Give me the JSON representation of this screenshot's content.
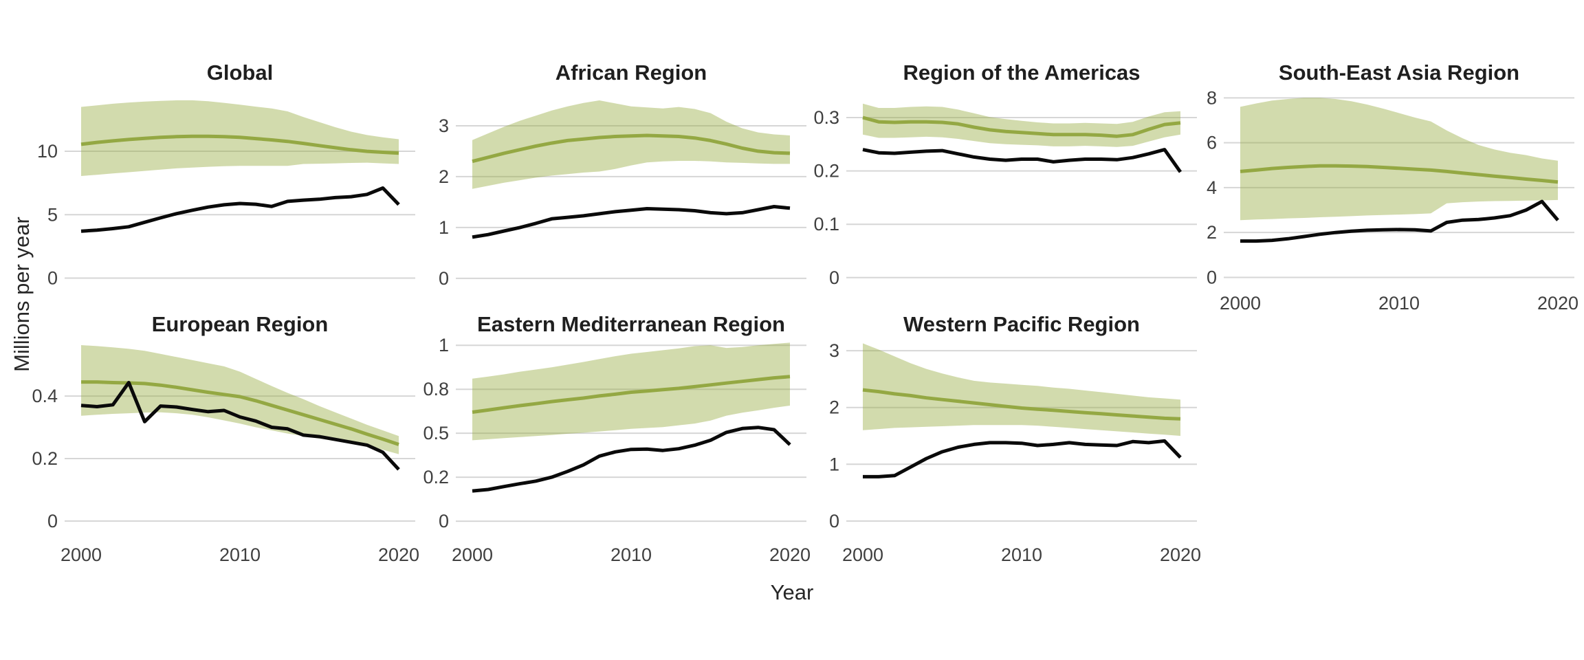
{
  "figure": {
    "xlabel": "Year",
    "ylabel": "Millions per year"
  },
  "colors": {
    "estimate_line": "#94a843",
    "confidence_band": "#94aa3c",
    "confidence_band_opacity": 0.42,
    "observed_line": "#0a0a0a",
    "gridline": "#d6d6d6",
    "tick_text": "#404040",
    "title_text": "#1f1f1f",
    "background": "#ffffff"
  },
  "chart_data": {
    "type": "line",
    "title": "",
    "xlabel": "Year",
    "ylabel": "Millions per year",
    "grid": "horizontal-only",
    "legend": "none",
    "x": [
      2000,
      2001,
      2002,
      2003,
      2004,
      2005,
      2006,
      2007,
      2008,
      2009,
      2010,
      2011,
      2012,
      2013,
      2014,
      2015,
      2016,
      2017,
      2018,
      2019,
      2020
    ],
    "xticks": [
      2000,
      2010,
      2020
    ],
    "panels": [
      {
        "title": "Global",
        "row": 0,
        "col": 0,
        "show_xaxis": false,
        "ylim": [
          -0.3,
          15.1
        ],
        "yticks": [
          {
            "v": 0,
            "label": "0"
          },
          {
            "v": 5,
            "label": "5"
          },
          {
            "v": 10,
            "label": "10"
          }
        ],
        "series": [
          {
            "name": "estimated",
            "values": [
              10.55,
              10.7,
              10.82,
              10.93,
              11.02,
              11.1,
              11.15,
              11.18,
              11.18,
              11.15,
              11.1,
              11.0,
              10.9,
              10.78,
              10.62,
              10.45,
              10.28,
              10.12,
              10.0,
              9.92,
              9.85
            ]
          },
          {
            "name": "estimated_upper",
            "values": [
              13.5,
              13.62,
              13.75,
              13.85,
              13.92,
              13.98,
              14.02,
              14.02,
              13.95,
              13.82,
              13.68,
              13.52,
              13.38,
              13.15,
              12.7,
              12.3,
              11.9,
              11.55,
              11.28,
              11.1,
              10.95
            ]
          },
          {
            "name": "estimated_lower",
            "values": [
              8.05,
              8.15,
              8.25,
              8.35,
              8.45,
              8.55,
              8.65,
              8.72,
              8.78,
              8.82,
              8.85,
              8.85,
              8.85,
              8.85,
              9.0,
              9.02,
              9.05,
              9.08,
              9.1,
              9.05,
              9.0
            ]
          },
          {
            "name": "observed",
            "values": [
              3.7,
              3.78,
              3.9,
              4.05,
              4.4,
              4.75,
              5.08,
              5.35,
              5.6,
              5.78,
              5.88,
              5.82,
              5.65,
              6.05,
              6.15,
              6.22,
              6.35,
              6.42,
              6.6,
              7.1,
              5.8
            ]
          }
        ]
      },
      {
        "title": "African Region",
        "row": 0,
        "col": 1,
        "show_xaxis": false,
        "ylim": [
          -0.07,
          3.77
        ],
        "yticks": [
          {
            "v": 0,
            "label": "0"
          },
          {
            "v": 1,
            "label": "1"
          },
          {
            "v": 2,
            "label": "2"
          },
          {
            "v": 3,
            "label": "3"
          }
        ],
        "series": [
          {
            "name": "estimated",
            "values": [
              2.3,
              2.38,
              2.46,
              2.53,
              2.6,
              2.66,
              2.71,
              2.74,
              2.77,
              2.79,
              2.8,
              2.81,
              2.8,
              2.79,
              2.76,
              2.71,
              2.64,
              2.56,
              2.5,
              2.47,
              2.46
            ]
          },
          {
            "name": "estimated_upper",
            "values": [
              2.72,
              2.85,
              2.98,
              3.1,
              3.2,
              3.3,
              3.38,
              3.45,
              3.5,
              3.44,
              3.38,
              3.36,
              3.34,
              3.37,
              3.33,
              3.25,
              3.08,
              2.95,
              2.87,
              2.83,
              2.81
            ]
          },
          {
            "name": "estimated_lower",
            "values": [
              1.76,
              1.82,
              1.88,
              1.93,
              1.98,
              2.02,
              2.05,
              2.08,
              2.1,
              2.15,
              2.22,
              2.28,
              2.3,
              2.31,
              2.31,
              2.3,
              2.28,
              2.27,
              2.26,
              2.25,
              2.25
            ]
          },
          {
            "name": "observed",
            "values": [
              0.81,
              0.86,
              0.93,
              1.0,
              1.08,
              1.17,
              1.2,
              1.23,
              1.27,
              1.31,
              1.34,
              1.37,
              1.36,
              1.35,
              1.33,
              1.29,
              1.27,
              1.29,
              1.35,
              1.41,
              1.38
            ]
          }
        ]
      },
      {
        "title": "Region of the Americas",
        "row": 0,
        "col": 2,
        "show_xaxis": false,
        "ylim": [
          -0.008,
          0.358
        ],
        "yticks": [
          {
            "v": 0,
            "label": "0"
          },
          {
            "v": 0.1,
            "label": "0.1"
          },
          {
            "v": 0.2,
            "label": "0.2"
          },
          {
            "v": 0.3,
            "label": "0.3"
          }
        ],
        "series": [
          {
            "name": "estimated",
            "values": [
              0.3,
              0.292,
              0.291,
              0.292,
              0.292,
              0.291,
              0.288,
              0.282,
              0.277,
              0.274,
              0.272,
              0.27,
              0.268,
              0.268,
              0.268,
              0.267,
              0.265,
              0.268,
              0.278,
              0.287,
              0.29
            ]
          },
          {
            "name": "estimated_upper",
            "values": [
              0.326,
              0.318,
              0.318,
              0.32,
              0.321,
              0.32,
              0.315,
              0.308,
              0.301,
              0.297,
              0.294,
              0.291,
              0.289,
              0.289,
              0.29,
              0.289,
              0.288,
              0.292,
              0.302,
              0.31,
              0.312
            ]
          },
          {
            "name": "estimated_lower",
            "values": [
              0.268,
              0.262,
              0.262,
              0.263,
              0.264,
              0.263,
              0.26,
              0.256,
              0.252,
              0.25,
              0.249,
              0.248,
              0.246,
              0.246,
              0.247,
              0.246,
              0.245,
              0.247,
              0.255,
              0.263,
              0.268
            ]
          },
          {
            "name": "observed",
            "values": [
              0.24,
              0.234,
              0.233,
              0.235,
              0.237,
              0.238,
              0.232,
              0.226,
              0.222,
              0.22,
              0.222,
              0.222,
              0.217,
              0.22,
              0.222,
              0.222,
              0.221,
              0.225,
              0.232,
              0.24,
              0.198
            ]
          }
        ]
      },
      {
        "title": "South-East Asia Region",
        "row": 0,
        "col": 3,
        "show_xaxis": true,
        "ylim": [
          -0.2,
          8.5
        ],
        "yticks": [
          {
            "v": 0,
            "label": "0"
          },
          {
            "v": 2,
            "label": "2"
          },
          {
            "v": 4,
            "label": "4"
          },
          {
            "v": 6,
            "label": "6"
          },
          {
            "v": 8,
            "label": "8"
          }
        ],
        "series": [
          {
            "name": "estimated",
            "values": [
              4.72,
              4.78,
              4.85,
              4.9,
              4.94,
              4.97,
              4.97,
              4.96,
              4.94,
              4.9,
              4.86,
              4.82,
              4.78,
              4.72,
              4.65,
              4.58,
              4.51,
              4.45,
              4.38,
              4.32,
              4.25
            ]
          },
          {
            "name": "estimated_upper",
            "values": [
              7.6,
              7.75,
              7.88,
              7.95,
              8.0,
              8.0,
              7.95,
              7.85,
              7.7,
              7.52,
              7.32,
              7.12,
              6.95,
              6.55,
              6.2,
              5.9,
              5.7,
              5.55,
              5.45,
              5.3,
              5.2
            ]
          },
          {
            "name": "estimated_lower",
            "values": [
              2.55,
              2.58,
              2.6,
              2.63,
              2.65,
              2.68,
              2.7,
              2.73,
              2.76,
              2.78,
              2.8,
              2.82,
              2.85,
              3.3,
              3.35,
              3.38,
              3.4,
              3.41,
              3.42,
              3.43,
              3.45
            ]
          },
          {
            "name": "observed",
            "values": [
              1.62,
              1.62,
              1.65,
              1.72,
              1.82,
              1.92,
              2.0,
              2.06,
              2.1,
              2.12,
              2.13,
              2.12,
              2.07,
              2.45,
              2.55,
              2.58,
              2.65,
              2.75,
              3.0,
              3.38,
              2.55
            ]
          }
        ]
      },
      {
        "title": "European Region",
        "row": 1,
        "col": 0,
        "show_xaxis": true,
        "ylim": [
          -0.04,
          0.585
        ],
        "yticks": [
          {
            "v": 0,
            "label": "0"
          },
          {
            "v": 0.2,
            "label": "0.2"
          },
          {
            "v": 0.4,
            "label": "0.4"
          }
        ],
        "series": [
          {
            "name": "estimated",
            "values": [
              0.445,
              0.445,
              0.443,
              0.442,
              0.44,
              0.435,
              0.428,
              0.42,
              0.412,
              0.405,
              0.398,
              0.385,
              0.37,
              0.355,
              0.34,
              0.325,
              0.31,
              0.295,
              0.278,
              0.262,
              0.245
            ]
          },
          {
            "name": "estimated_upper",
            "values": [
              0.563,
              0.56,
              0.556,
              0.551,
              0.545,
              0.535,
              0.525,
              0.515,
              0.505,
              0.495,
              0.478,
              0.455,
              0.432,
              0.41,
              0.39,
              0.368,
              0.348,
              0.328,
              0.308,
              0.29,
              0.272
            ]
          },
          {
            "name": "estimated_lower",
            "values": [
              0.337,
              0.34,
              0.343,
              0.345,
              0.347,
              0.348,
              0.345,
              0.34,
              0.332,
              0.322,
              0.312,
              0.3,
              0.29,
              0.28,
              0.272,
              0.264,
              0.256,
              0.248,
              0.24,
              0.228,
              0.214
            ]
          },
          {
            "name": "observed",
            "values": [
              0.37,
              0.366,
              0.372,
              0.443,
              0.318,
              0.368,
              0.365,
              0.357,
              0.35,
              0.354,
              0.333,
              0.32,
              0.3,
              0.295,
              0.275,
              0.27,
              0.261,
              0.252,
              0.243,
              0.22,
              0.165
            ]
          }
        ]
      },
      {
        "title": "Eastern Mediterranean Region",
        "row": 1,
        "col": 1,
        "show_xaxis": true,
        "ylim": [
          -0.07,
          1.04
        ],
        "yticks": [
          {
            "v": 0,
            "label": "0"
          },
          {
            "v": 0.25,
            "label": "0.2"
          },
          {
            "v": 0.5,
            "label": "0.5"
          },
          {
            "v": 0.75,
            "label": "0.8"
          },
          {
            "v": 1,
            "label": "1"
          }
        ],
        "series": [
          {
            "name": "estimated",
            "values": [
              0.62,
              0.632,
              0.645,
              0.657,
              0.668,
              0.68,
              0.69,
              0.7,
              0.712,
              0.722,
              0.733,
              0.74,
              0.748,
              0.755,
              0.765,
              0.775,
              0.785,
              0.795,
              0.805,
              0.815,
              0.822
            ]
          },
          {
            "name": "estimated_upper",
            "values": [
              0.81,
              0.822,
              0.835,
              0.85,
              0.862,
              0.875,
              0.89,
              0.905,
              0.922,
              0.938,
              0.952,
              0.962,
              0.972,
              0.982,
              0.995,
              1.0,
              0.985,
              0.99,
              1.0,
              1.008,
              1.015
            ]
          },
          {
            "name": "estimated_lower",
            "values": [
              0.46,
              0.466,
              0.472,
              0.478,
              0.484,
              0.49,
              0.497,
              0.503,
              0.51,
              0.517,
              0.525,
              0.53,
              0.535,
              0.545,
              0.555,
              0.572,
              0.6,
              0.617,
              0.63,
              0.645,
              0.657
            ]
          },
          {
            "name": "observed",
            "values": [
              0.172,
              0.18,
              0.197,
              0.213,
              0.228,
              0.25,
              0.283,
              0.32,
              0.37,
              0.394,
              0.408,
              0.41,
              0.402,
              0.412,
              0.432,
              0.46,
              0.505,
              0.527,
              0.533,
              0.52,
              0.435
            ]
          }
        ]
      },
      {
        "title": "Western Pacific Region",
        "row": 1,
        "col": 2,
        "show_xaxis": true,
        "ylim": [
          -0.22,
          3.22
        ],
        "yticks": [
          {
            "v": 0,
            "label": "0"
          },
          {
            "v": 1,
            "label": "1"
          },
          {
            "v": 2,
            "label": "2"
          },
          {
            "v": 3,
            "label": "3"
          }
        ],
        "series": [
          {
            "name": "estimated",
            "values": [
              2.31,
              2.28,
              2.24,
              2.21,
              2.17,
              2.14,
              2.11,
              2.08,
              2.05,
              2.02,
              1.99,
              1.97,
              1.95,
              1.93,
              1.91,
              1.89,
              1.87,
              1.85,
              1.83,
              1.81,
              1.8
            ]
          },
          {
            "name": "estimated_upper",
            "values": [
              3.13,
              3.02,
              2.9,
              2.78,
              2.68,
              2.6,
              2.53,
              2.47,
              2.44,
              2.42,
              2.4,
              2.38,
              2.35,
              2.33,
              2.3,
              2.27,
              2.24,
              2.21,
              2.18,
              2.16,
              2.14
            ]
          },
          {
            "name": "estimated_lower",
            "values": [
              1.6,
              1.62,
              1.64,
              1.65,
              1.66,
              1.67,
              1.68,
              1.69,
              1.69,
              1.69,
              1.69,
              1.68,
              1.66,
              1.64,
              1.62,
              1.6,
              1.58,
              1.56,
              1.54,
              1.52,
              1.5
            ]
          },
          {
            "name": "observed",
            "values": [
              0.78,
              0.78,
              0.8,
              0.95,
              1.1,
              1.22,
              1.3,
              1.35,
              1.38,
              1.38,
              1.37,
              1.33,
              1.35,
              1.38,
              1.35,
              1.34,
              1.33,
              1.4,
              1.38,
              1.41,
              1.12
            ]
          }
        ]
      }
    ]
  }
}
